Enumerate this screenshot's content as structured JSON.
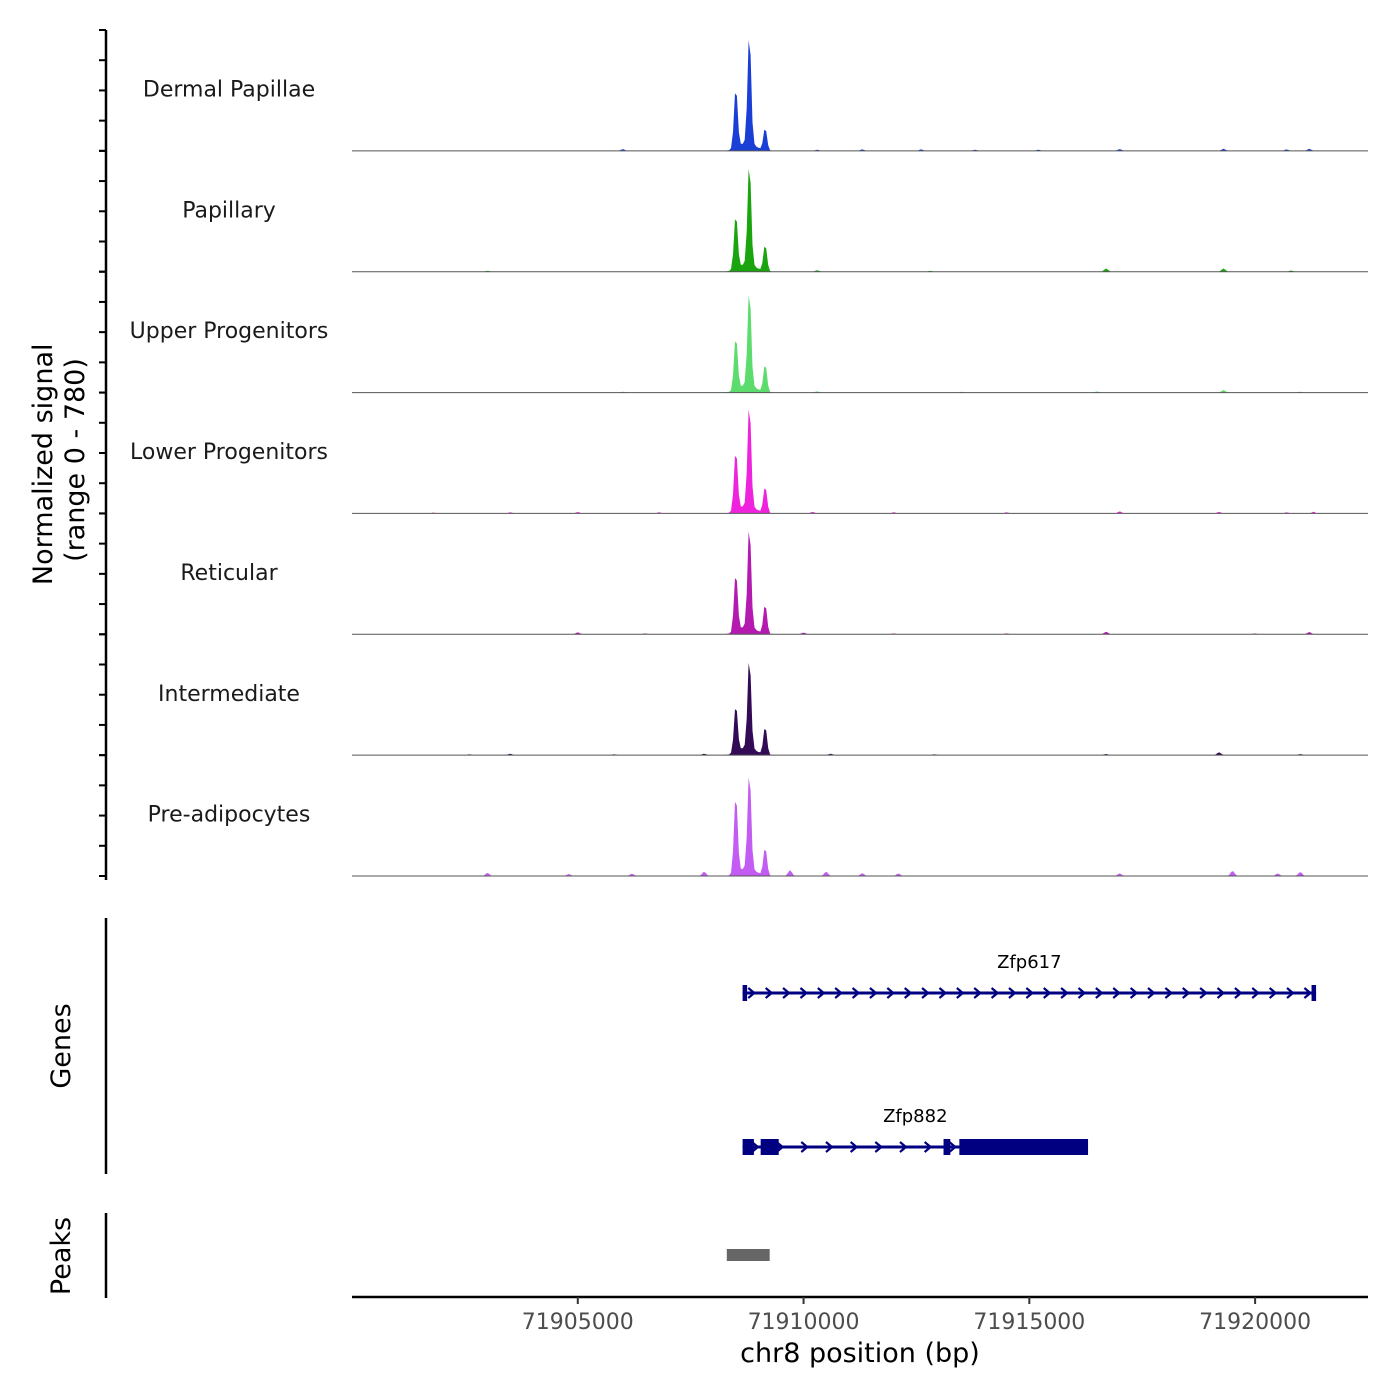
{
  "chart_data": {
    "type": "area",
    "chromosome": "chr8",
    "xlabel": "chr8 position (bp)",
    "ylabel_line1": "Normalized signal",
    "ylabel_line2": "(range 0 - 780)",
    "xlim": [
      71900000,
      71922500
    ],
    "ylim": [
      0,
      780
    ],
    "xticks": [
      71905000,
      71910000,
      71915000,
      71920000
    ],
    "xtick_labels": [
      "71905000",
      "71910000",
      "71915000",
      "71920000"
    ],
    "tracks": [
      {
        "name": "Dermal Papillae",
        "color": "#1a3fd6",
        "main_peaks": [
          [
            71908500,
            430
          ],
          [
            71908800,
            780
          ],
          [
            71909150,
            160
          ]
        ],
        "bg_peaks": [
          [
            71906000,
            12
          ],
          [
            71910300,
            8
          ],
          [
            71911300,
            10
          ],
          [
            71912600,
            10
          ],
          [
            71913800,
            8
          ],
          [
            71915200,
            8
          ],
          [
            71917000,
            12
          ],
          [
            71919300,
            14
          ],
          [
            71920700,
            10
          ],
          [
            71921200,
            14
          ]
        ]
      },
      {
        "name": "Papillary",
        "color": "#1aa50f",
        "main_peaks": [
          [
            71908500,
            390
          ],
          [
            71908800,
            720
          ],
          [
            71909150,
            190
          ]
        ],
        "bg_peaks": [
          [
            71903000,
            6
          ],
          [
            71910300,
            10
          ],
          [
            71912800,
            6
          ],
          [
            71916700,
            22
          ],
          [
            71919300,
            22
          ],
          [
            71920800,
            8
          ]
        ]
      },
      {
        "name": "Upper Progenitors",
        "color": "#5ddc6e",
        "main_peaks": [
          [
            71908500,
            380
          ],
          [
            71908800,
            680
          ],
          [
            71909150,
            200
          ]
        ],
        "bg_peaks": [
          [
            71906000,
            6
          ],
          [
            71910300,
            8
          ],
          [
            71913500,
            6
          ],
          [
            71916500,
            8
          ],
          [
            71919300,
            18
          ],
          [
            71921000,
            6
          ]
        ]
      },
      {
        "name": "Lower Progenitors",
        "color": "#ef22de",
        "main_peaks": [
          [
            71908500,
            430
          ],
          [
            71908800,
            730
          ],
          [
            71909150,
            190
          ]
        ],
        "bg_peaks": [
          [
            71901800,
            6
          ],
          [
            71903500,
            8
          ],
          [
            71905000,
            10
          ],
          [
            71906800,
            8
          ],
          [
            71910200,
            10
          ],
          [
            71912000,
            8
          ],
          [
            71914500,
            8
          ],
          [
            71917000,
            14
          ],
          [
            71919200,
            10
          ],
          [
            71920700,
            8
          ],
          [
            71921300,
            12
          ]
        ]
      },
      {
        "name": "Reticular",
        "color": "#b41ab0",
        "main_peaks": [
          [
            71908500,
            420
          ],
          [
            71908800,
            720
          ],
          [
            71909150,
            210
          ]
        ],
        "bg_peaks": [
          [
            71905000,
            14
          ],
          [
            71906500,
            6
          ],
          [
            71910000,
            12
          ],
          [
            71912000,
            6
          ],
          [
            71914500,
            6
          ],
          [
            71916700,
            18
          ],
          [
            71920000,
            6
          ],
          [
            71921200,
            16
          ]
        ]
      },
      {
        "name": "Intermediate",
        "color": "#330a55",
        "main_peaks": [
          [
            71908500,
            340
          ],
          [
            71908800,
            640
          ],
          [
            71909150,
            200
          ]
        ],
        "bg_peaks": [
          [
            71902600,
            6
          ],
          [
            71903500,
            10
          ],
          [
            71905800,
            6
          ],
          [
            71907800,
            10
          ],
          [
            71910600,
            10
          ],
          [
            71912900,
            6
          ],
          [
            71916700,
            8
          ],
          [
            71919200,
            20
          ],
          [
            71921000,
            8
          ]
        ]
      },
      {
        "name": "Pre-adipocytes",
        "color": "#c25cf3",
        "main_peaks": [
          [
            71908500,
            560
          ],
          [
            71908800,
            690
          ],
          [
            71909150,
            200
          ]
        ],
        "bg_peaks": [
          [
            71903000,
            22
          ],
          [
            71904800,
            14
          ],
          [
            71906200,
            16
          ],
          [
            71907800,
            30
          ],
          [
            71909700,
            40
          ],
          [
            71910500,
            30
          ],
          [
            71911300,
            20
          ],
          [
            71912100,
            18
          ],
          [
            71917000,
            18
          ],
          [
            71919500,
            36
          ],
          [
            71920500,
            18
          ],
          [
            71921000,
            28
          ]
        ]
      }
    ],
    "genes_label": "Genes",
    "genes": [
      {
        "name": "Zfp617",
        "start": 71908650,
        "end": 71921350,
        "strand": "+",
        "exons": [
          [
            71908650,
            71908750
          ],
          [
            71921250,
            71921350
          ]
        ],
        "arrow_count": 33
      },
      {
        "name": "Zfp882",
        "start": 71908650,
        "end": 71916300,
        "strand": "+",
        "exons": [
          [
            71908650,
            71908900
          ],
          [
            71909050,
            71909450
          ],
          [
            71913100,
            71913250
          ],
          [
            71913450,
            71916300
          ]
        ],
        "arrow_count": 14
      }
    ],
    "gene_color": "#000080",
    "peaks_label": "Peaks",
    "peaks": [
      [
        71908300,
        71909250
      ]
    ],
    "peak_color": "#666666"
  }
}
